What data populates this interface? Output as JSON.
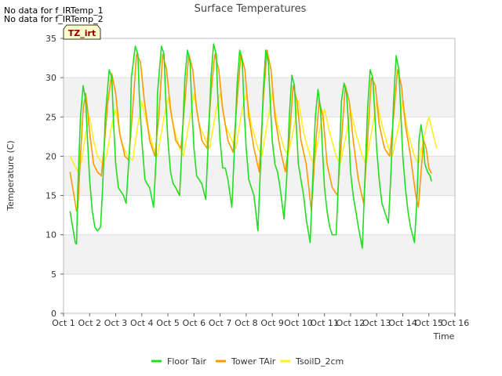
{
  "notes": [
    "No data for f_IRTemp_1",
    "No data for f_IRTemp_2"
  ],
  "badge": "TZ_irt",
  "colors": {
    "floor": "#22dd22",
    "tower": "#ff9900",
    "tsoil": "#ffee22",
    "band": "#f2f2f2",
    "axis": "#bbbbbb"
  },
  "chart_data": {
    "type": "line",
    "title": "Surface Temperatures",
    "xlabel": "Time",
    "ylabel": "Temperature (C)",
    "xlim": [
      1,
      16
    ],
    "ylim": [
      0,
      35
    ],
    "x_ticks": [
      1,
      2,
      3,
      4,
      5,
      6,
      7,
      8,
      9,
      10,
      11,
      12,
      13,
      14,
      15,
      16
    ],
    "x_tick_labels": [
      "Oct 1",
      "Oct 2",
      "Oct 3",
      "Oct 4",
      "Oct 5",
      "Oct 6",
      "Oct 7",
      "Oct 8",
      "Oct 9",
      "Oct 10",
      "Oct 11",
      "Oct 12",
      "Oct 13",
      "Oct 14",
      "Oct 15",
      "Oct 16"
    ],
    "y_ticks": [
      0,
      5,
      10,
      15,
      20,
      25,
      30,
      35
    ],
    "legend": "bottom",
    "series": [
      {
        "name": "Floor Tair",
        "color": "#22dd22",
        "x": [
          1.25,
          1.35,
          1.45,
          1.5,
          1.55,
          1.65,
          1.75,
          1.85,
          1.92,
          2.0,
          2.1,
          2.2,
          2.3,
          2.42,
          2.5,
          2.6,
          2.75,
          2.85,
          2.92,
          3.0,
          3.1,
          3.2,
          3.3,
          3.4,
          3.55,
          3.6,
          3.75,
          3.85,
          3.9,
          4.0,
          4.12,
          4.2,
          4.3,
          4.45,
          4.55,
          4.6,
          4.75,
          4.85,
          4.92,
          5.0,
          5.1,
          5.2,
          5.3,
          5.45,
          5.55,
          5.65,
          5.75,
          5.85,
          5.92,
          6.0,
          6.1,
          6.2,
          6.3,
          6.45,
          6.55,
          6.65,
          6.75,
          6.85,
          6.92,
          7.0,
          7.1,
          7.2,
          7.3,
          7.45,
          7.55,
          7.65,
          7.75,
          7.85,
          7.92,
          8.0,
          8.1,
          8.2,
          8.3,
          8.45,
          8.55,
          8.65,
          8.75,
          8.85,
          8.92,
          9.0,
          9.1,
          9.2,
          9.3,
          9.45,
          9.55,
          9.65,
          9.75,
          9.85,
          9.92,
          10.0,
          10.1,
          10.2,
          10.3,
          10.45,
          10.55,
          10.65,
          10.75,
          10.85,
          10.92,
          11.0,
          11.1,
          11.2,
          11.3,
          11.45,
          11.55,
          11.65,
          11.75,
          11.85,
          11.92,
          12.0,
          12.1,
          12.2,
          12.3,
          12.45,
          12.55,
          12.65,
          12.75,
          12.85,
          12.92,
          13.0,
          13.1,
          13.2,
          13.3,
          13.45,
          13.55,
          13.65,
          13.75,
          13.85,
          13.92,
          14.0,
          14.1,
          14.2,
          14.3,
          14.45,
          14.55,
          14.62,
          14.7,
          14.78,
          14.85,
          14.95,
          15.05,
          15.1
        ],
        "y": [
          13,
          11,
          9,
          8.8,
          16,
          25,
          29,
          27,
          22,
          17,
          13,
          11,
          10.5,
          11,
          16,
          25,
          31,
          30,
          24,
          19,
          16,
          15.5,
          15,
          14,
          22,
          30,
          34,
          33,
          28,
          22,
          17,
          16.5,
          16,
          13.5,
          20,
          28,
          34,
          33,
          27,
          22,
          18,
          16.5,
          16,
          15,
          22,
          30,
          33.5,
          32,
          26,
          21,
          17.5,
          17,
          16.5,
          14.5,
          22,
          30,
          34.3,
          33,
          27,
          22,
          18.5,
          18.5,
          17,
          13.5,
          21,
          29,
          33.5,
          32,
          26,
          21,
          17,
          16,
          15,
          10.5,
          19,
          28,
          33.5,
          32,
          27,
          22,
          19,
          18,
          16,
          12,
          17,
          25,
          30.3,
          29,
          24,
          19,
          17,
          15,
          12,
          9,
          17,
          25,
          28.5,
          26,
          21,
          16,
          13,
          11,
          10,
          10,
          18,
          27,
          29.3,
          28,
          24,
          18,
          15,
          13,
          11,
          8.3,
          17,
          26,
          31,
          30,
          26,
          21,
          17,
          14,
          13,
          11.5,
          18,
          27,
          32.8,
          31,
          26,
          20,
          16,
          13,
          11,
          9,
          15,
          22,
          24,
          22,
          19,
          18,
          17.5,
          16.8
        ]
      },
      {
        "name": "Tower TAir",
        "color": "#ff9900",
        "x": [
          1.25,
          1.4,
          1.5,
          1.55,
          1.65,
          1.75,
          1.85,
          1.92,
          2.0,
          2.15,
          2.3,
          2.45,
          2.55,
          2.7,
          2.85,
          3.0,
          3.15,
          3.35,
          3.5,
          3.65,
          3.8,
          3.95,
          4.1,
          4.3,
          4.5,
          4.65,
          4.8,
          4.95,
          5.1,
          5.3,
          5.5,
          5.65,
          5.8,
          5.95,
          6.1,
          6.3,
          6.5,
          6.65,
          6.8,
          6.95,
          7.1,
          7.3,
          7.5,
          7.65,
          7.8,
          7.95,
          8.1,
          8.3,
          8.5,
          8.65,
          8.8,
          8.95,
          9.1,
          9.3,
          9.5,
          9.65,
          9.8,
          9.95,
          10.1,
          10.3,
          10.5,
          10.65,
          10.8,
          10.95,
          11.1,
          11.3,
          11.5,
          11.65,
          11.8,
          11.95,
          12.1,
          12.3,
          12.5,
          12.65,
          12.8,
          12.95,
          13.1,
          13.3,
          13.5,
          13.65,
          13.8,
          13.95,
          14.1,
          14.3,
          14.5,
          14.6,
          14.7,
          14.8,
          14.9,
          15.0,
          15.1
        ],
        "y": [
          18,
          15,
          13,
          13.5,
          20,
          26,
          28,
          26,
          23,
          19,
          18,
          17.5,
          21,
          27,
          30.5,
          28,
          23,
          20,
          19.5,
          26,
          33,
          32,
          27,
          22,
          20,
          25,
          33,
          31,
          26,
          22,
          21,
          27,
          33,
          31,
          26,
          22,
          21,
          28,
          33,
          31,
          26,
          22,
          20.5,
          27,
          33,
          31,
          25,
          21,
          18,
          27,
          33.5,
          31,
          25,
          21,
          18,
          22,
          29,
          27,
          22,
          19,
          13,
          21,
          27,
          25,
          19,
          16,
          15,
          22,
          29,
          27,
          22,
          17,
          14,
          22,
          30,
          29,
          24,
          21,
          20,
          25,
          31,
          29,
          24,
          20,
          15,
          13.5,
          18,
          22,
          21,
          18.5,
          17.8
        ]
      },
      {
        "name": "TsoilD_2cm",
        "color": "#ffee22",
        "x": [
          1.25,
          1.4,
          1.55,
          1.7,
          1.85,
          2.0,
          2.15,
          2.3,
          2.5,
          2.65,
          2.85,
          3.0,
          3.2,
          3.45,
          3.65,
          3.85,
          4.0,
          4.2,
          4.45,
          4.6,
          4.85,
          5.0,
          5.2,
          5.45,
          5.6,
          5.85,
          6.0,
          6.2,
          6.45,
          6.6,
          6.85,
          7.0,
          7.2,
          7.45,
          7.6,
          7.85,
          8.0,
          8.2,
          8.45,
          8.6,
          8.85,
          9.0,
          9.2,
          9.45,
          9.6,
          9.85,
          10.0,
          10.2,
          10.45,
          10.6,
          10.85,
          11.0,
          11.2,
          11.45,
          11.6,
          11.85,
          12.0,
          12.2,
          12.45,
          12.6,
          12.85,
          13.0,
          13.2,
          13.45,
          13.6,
          13.85,
          14.0,
          14.2,
          14.45,
          14.6,
          14.85,
          15.0,
          15.3
        ],
        "y": [
          20,
          19,
          18,
          19.5,
          23,
          25,
          22,
          20,
          19,
          20,
          24,
          26,
          22,
          20,
          19.5,
          24,
          27,
          24,
          21,
          20,
          25,
          27.5,
          24,
          21,
          20,
          25,
          28,
          24,
          22,
          21,
          26,
          28,
          24,
          22,
          21,
          26,
          28,
          24,
          21,
          20,
          25,
          28,
          24,
          21,
          20,
          24,
          27,
          23,
          20,
          19,
          24,
          26,
          23,
          20,
          19,
          23,
          26,
          23,
          20,
          19,
          24,
          27,
          24,
          21,
          20,
          24,
          27,
          23,
          20,
          19,
          23,
          25,
          21
        ]
      }
    ]
  }
}
